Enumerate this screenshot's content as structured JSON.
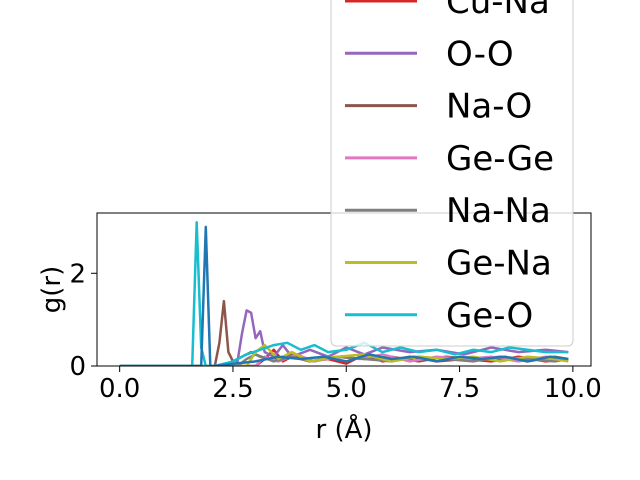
{
  "chart_data": {
    "type": "line",
    "xlabel": "r (Å)",
    "ylabel": "g(r)",
    "xlim": [
      -0.5,
      10.4
    ],
    "ylim": [
      0,
      3.3
    ],
    "xticks": [
      0.0,
      2.5,
      5.0,
      7.5,
      10.0
    ],
    "xtick_labels": [
      "0.0",
      "2.5",
      "5.0",
      "7.5",
      "10.0"
    ],
    "yticks": [
      0,
      2
    ],
    "ytick_labels": [
      "0",
      "2"
    ],
    "legend_position": "upper-right",
    "grid": false,
    "series": [
      {
        "name": "Cu-Na",
        "color": "#d62728",
        "x": [
          0,
          3.0,
          3.2,
          3.4,
          3.6,
          3.8,
          4.2,
          4.6,
          5.0,
          5.4,
          5.8,
          6.4,
          7.0,
          7.6,
          8.2,
          8.8,
          9.4,
          9.9
        ],
        "y": [
          0,
          0,
          0.15,
          0.35,
          0.1,
          0.2,
          0.1,
          0.15,
          0.05,
          0.25,
          0.1,
          0.2,
          0.1,
          0.15,
          0.1,
          0.2,
          0.1,
          0.15
        ]
      },
      {
        "name": "O-O",
        "color": "#9467bd",
        "x": [
          0,
          2.5,
          2.6,
          2.7,
          2.8,
          2.9,
          3.0,
          3.1,
          3.2,
          3.4,
          3.6,
          3.8,
          4.2,
          4.6,
          5.0,
          5.4,
          5.8,
          6.4,
          7.0,
          7.6,
          8.2,
          8.8,
          9.4,
          9.9
        ],
        "y": [
          0,
          0,
          0.1,
          0.7,
          1.2,
          1.15,
          0.6,
          0.75,
          0.3,
          0.2,
          0.45,
          0.2,
          0.35,
          0.2,
          0.4,
          0.25,
          0.4,
          0.3,
          0.35,
          0.25,
          0.4,
          0.3,
          0.35,
          0.3
        ]
      },
      {
        "name": "Na-O",
        "color": "#8c564b",
        "x": [
          0,
          2.1,
          2.2,
          2.3,
          2.4,
          2.5,
          2.7,
          2.9,
          3.1,
          3.4,
          3.8,
          4.2,
          4.8,
          5.4,
          6.0,
          6.6,
          7.2,
          7.8,
          8.4,
          9.0,
          9.6,
          9.9
        ],
        "y": [
          0,
          0,
          0.5,
          1.4,
          0.3,
          0.1,
          0.2,
          0.3,
          0.2,
          0.15,
          0.25,
          0.1,
          0.2,
          0.15,
          0.2,
          0.1,
          0.2,
          0.15,
          0.2,
          0.1,
          0.2,
          0.15
        ]
      },
      {
        "name": "Ge-Ge",
        "color": "#e377c2",
        "x": [
          0,
          3.0,
          3.2,
          3.5,
          3.9,
          4.3,
          4.8,
          5.3,
          5.8,
          6.4,
          7.0,
          7.6,
          8.2,
          8.8,
          9.4,
          9.9
        ],
        "y": [
          0,
          0,
          0.2,
          0.1,
          0.25,
          0.1,
          0.2,
          0.15,
          0.25,
          0.1,
          0.2,
          0.15,
          0.2,
          0.1,
          0.2,
          0.15
        ]
      },
      {
        "name": "Na-Na",
        "color": "#7f7f7f",
        "x": [
          0,
          2.6,
          2.8,
          3.0,
          3.4,
          3.8,
          4.2,
          4.8,
          5.4,
          6.0,
          6.6,
          7.2,
          7.8,
          8.4,
          9.0,
          9.6,
          9.9
        ],
        "y": [
          0,
          0,
          0.15,
          0.25,
          0.1,
          0.2,
          0.1,
          0.2,
          0.15,
          0.1,
          0.2,
          0.15,
          0.1,
          0.2,
          0.15,
          0.1,
          0.15
        ]
      },
      {
        "name": "Ge-Na",
        "color": "#bcbd22",
        "x": [
          0,
          2.8,
          3.0,
          3.2,
          3.5,
          3.8,
          4.2,
          4.8,
          5.4,
          6.0,
          6.6,
          7.2,
          7.8,
          8.4,
          9.0,
          9.6,
          9.9
        ],
        "y": [
          0,
          0,
          0.3,
          0.45,
          0.15,
          0.3,
          0.1,
          0.2,
          0.25,
          0.1,
          0.2,
          0.15,
          0.2,
          0.1,
          0.2,
          0.15,
          0.1
        ]
      },
      {
        "name": "Ge-O",
        "color": "#17becf",
        "x": [
          0,
          1.6,
          1.7,
          1.8,
          1.9,
          2.1,
          2.5,
          2.8,
          3.1,
          3.4,
          3.7,
          4.0,
          4.3,
          4.6,
          5.0,
          5.4,
          5.8,
          6.2,
          6.6,
          7.0,
          7.4,
          7.8,
          8.2,
          8.6,
          9.0,
          9.4,
          9.9
        ],
        "y": [
          0,
          0,
          3.1,
          0.4,
          0,
          0,
          0.1,
          0.25,
          0.35,
          0.45,
          0.5,
          0.35,
          0.45,
          0.3,
          0.35,
          0.5,
          0.3,
          0.4,
          0.3,
          0.35,
          0.25,
          0.35,
          0.3,
          0.4,
          0.35,
          0.3,
          0.3
        ]
      },
      {
        "name": "",
        "color": "#1f77b4",
        "x": [
          0,
          1.8,
          1.9,
          2.0,
          2.1,
          2.5,
          3.0,
          3.5,
          4.0,
          4.5,
          5.0,
          5.5,
          6.0,
          6.5,
          7.0,
          7.5,
          8.0,
          8.5,
          9.0,
          9.5,
          9.9
        ],
        "y": [
          0,
          0,
          3.0,
          0,
          0,
          0.05,
          0.1,
          0.2,
          0.15,
          0.2,
          0.1,
          0.25,
          0.15,
          0.2,
          0.1,
          0.2,
          0.15,
          0.2,
          0.1,
          0.2,
          0.15
        ]
      }
    ]
  }
}
